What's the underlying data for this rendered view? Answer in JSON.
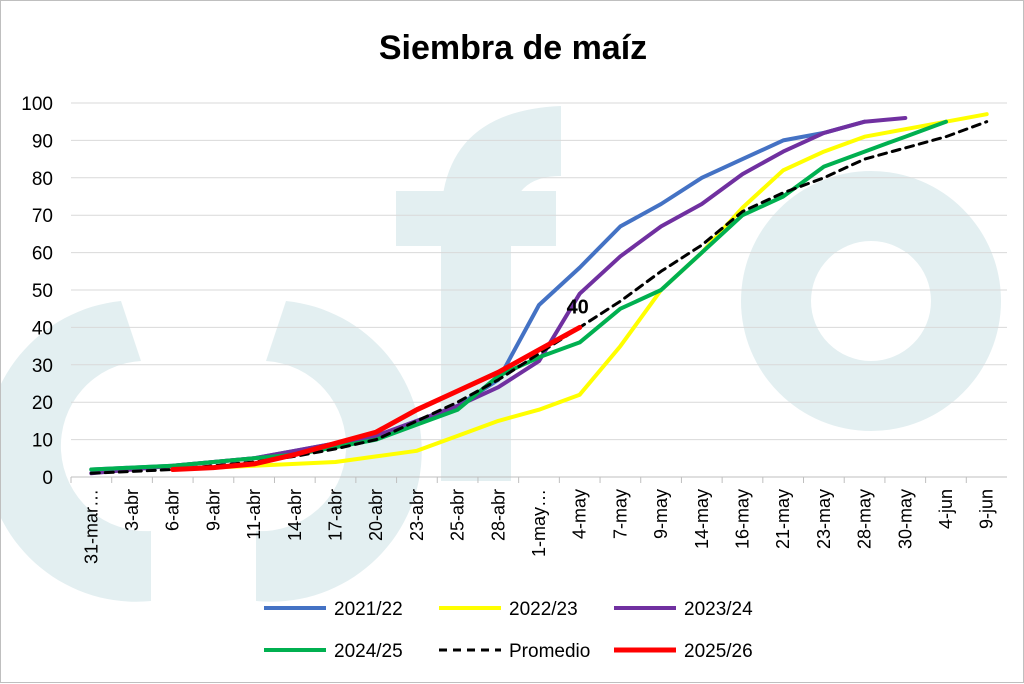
{
  "chart_data": {
    "type": "line",
    "title": "Siembra de maíz",
    "xlabel": "",
    "ylabel": "",
    "ylim": [
      0,
      100
    ],
    "yticks": [
      0,
      10,
      20,
      30,
      40,
      50,
      60,
      70,
      80,
      90,
      100
    ],
    "grid": true,
    "legend_position": "bottom",
    "watermark": "fyo",
    "categories": [
      "31-mar…",
      "3-abr",
      "6-abr",
      "9-abr",
      "11-abr",
      "14-abr",
      "17-abr",
      "20-abr",
      "23-abr",
      "25-abr",
      "28-abr",
      "1-may…",
      "4-may",
      "7-may",
      "9-may",
      "14-may",
      "16-may",
      "21-may",
      "23-may",
      "28-may",
      "30-may",
      "4-jun",
      "9-jun"
    ],
    "series": [
      {
        "name": "2021/22",
        "color": "#4472c4",
        "style": "solid",
        "values": [
          2,
          2.5,
          3,
          4,
          5,
          7,
          9,
          11,
          15,
          19,
          26,
          46,
          56,
          67,
          73,
          80,
          85,
          90,
          92,
          95,
          null,
          null,
          null
        ]
      },
      {
        "name": "2022/23",
        "color": "#ffff00",
        "style": "solid",
        "values": [
          null,
          null,
          2,
          2.5,
          3,
          3.5,
          4,
          5.5,
          7,
          11,
          15,
          18,
          22,
          35,
          50,
          60,
          72,
          82,
          87,
          91,
          93,
          95,
          97
        ]
      },
      {
        "name": "2023/24",
        "color": "#7030a0",
        "style": "solid",
        "values": [
          1,
          2,
          3,
          4,
          5,
          7,
          9,
          11,
          15,
          19,
          24,
          31,
          49,
          59,
          67,
          73,
          81,
          87,
          92,
          95,
          96,
          null,
          null
        ]
      },
      {
        "name": "2024/25",
        "color": "#00b050",
        "style": "solid",
        "values": [
          2,
          2.5,
          3,
          4,
          5,
          6,
          8,
          10,
          14,
          18,
          27,
          32,
          36,
          45,
          50,
          60,
          70,
          75,
          83,
          87,
          91,
          95,
          null
        ]
      },
      {
        "name": "Promedio",
        "color": "#000000",
        "style": "dashed",
        "values": [
          1,
          1.5,
          2,
          3,
          4,
          5.5,
          7.5,
          10,
          15,
          20,
          26,
          33,
          40,
          47,
          55,
          62,
          71,
          76,
          80,
          85,
          88,
          91,
          95
        ]
      },
      {
        "name": "2025/26",
        "color": "#ff0000",
        "style": "solid",
        "values": [
          null,
          null,
          2,
          2.5,
          3.5,
          6,
          9,
          12,
          18,
          23,
          28,
          34,
          40,
          null,
          null,
          null,
          null,
          null,
          null,
          null,
          null,
          null,
          null
        ]
      }
    ],
    "annotations": [
      {
        "text": "40",
        "category": "4-may",
        "value": 40
      }
    ]
  }
}
